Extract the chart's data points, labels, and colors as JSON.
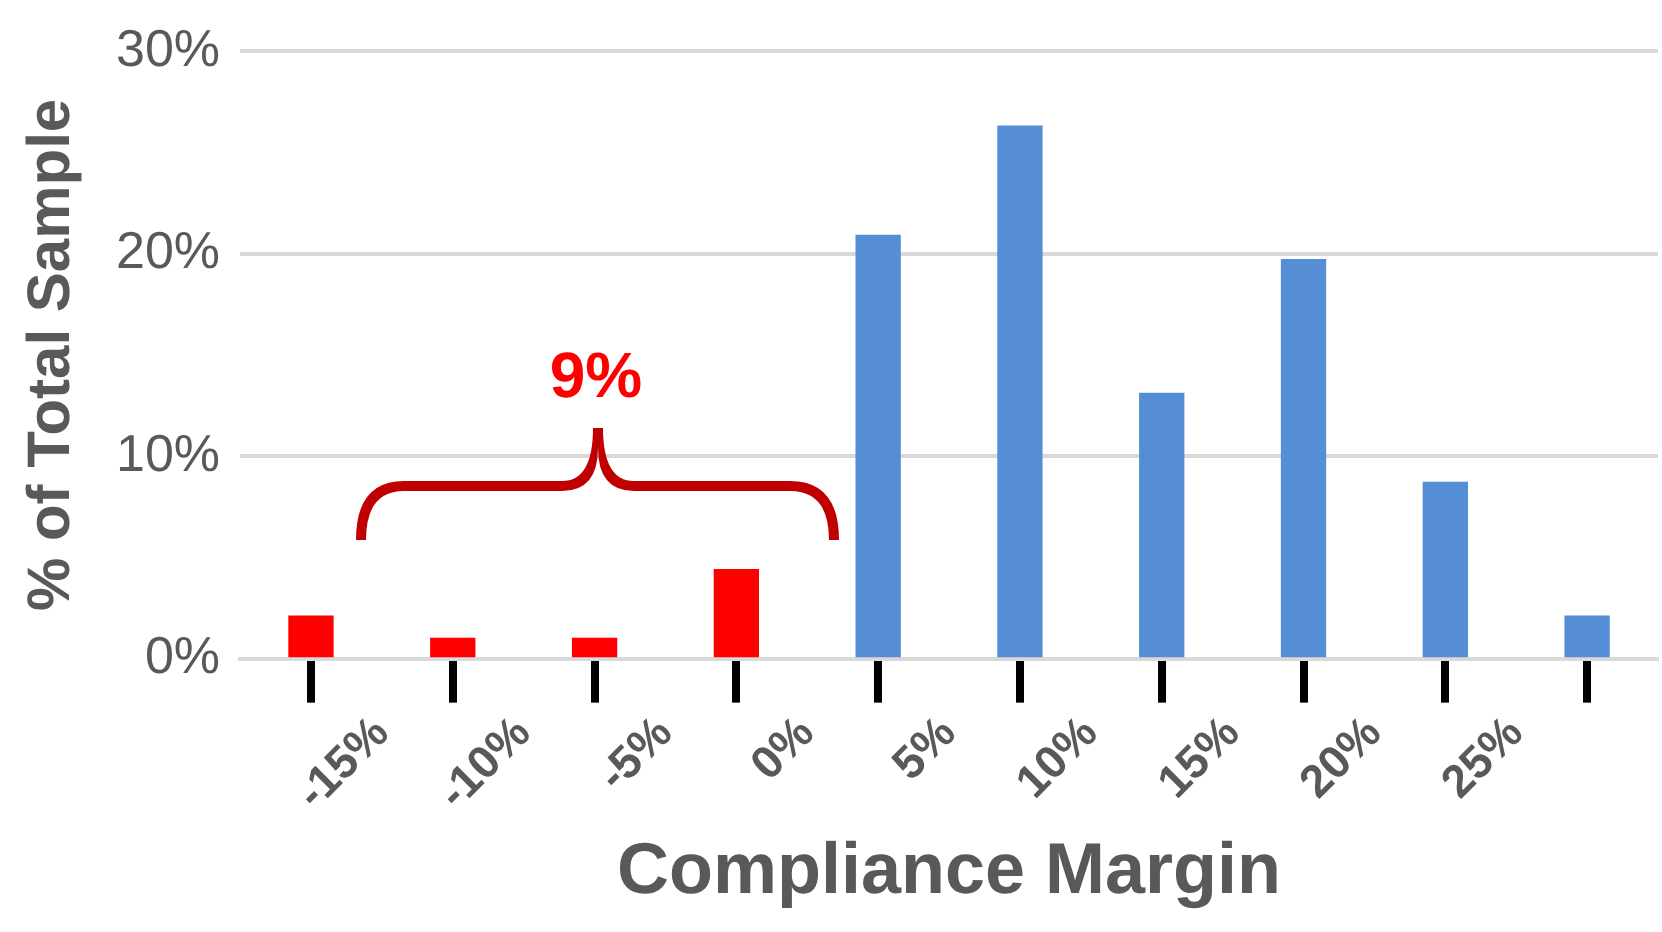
{
  "chart_data": {
    "type": "histogram",
    "xlabel": "Compliance Margin",
    "ylabel": "% of Total Sample",
    "bins": [
      -20,
      -15,
      -10,
      -5,
      0,
      5,
      10,
      15,
      20,
      25,
      30
    ],
    "values": [
      2.1,
      1.0,
      1.0,
      4.4,
      20.9,
      26.3,
      13.1,
      19.7,
      8.7,
      2.1
    ],
    "colors": [
      "#ff0000",
      "#ff0000",
      "#ff0000",
      "#ff0000",
      "#558ed5",
      "#558ed5",
      "#558ed5",
      "#558ed5",
      "#558ed5",
      "#558ed5"
    ],
    "xlim": [
      -20,
      30
    ],
    "xticks": [
      {
        "value": -15,
        "label": "-15%"
      },
      {
        "value": -10,
        "label": "-10%"
      },
      {
        "value": -5,
        "label": "-5%"
      },
      {
        "value": 0,
        "label": "0%"
      },
      {
        "value": 5,
        "label": "5%"
      },
      {
        "value": 10,
        "label": "10%"
      },
      {
        "value": 15,
        "label": "15%"
      },
      {
        "value": 20,
        "label": "20%"
      },
      {
        "value": 25,
        "label": "25%"
      }
    ],
    "ylim": [
      0,
      30
    ],
    "yticks": [
      {
        "value": 0,
        "label": "0%"
      },
      {
        "value": 10,
        "label": "10%"
      },
      {
        "value": 20,
        "label": "20%"
      },
      {
        "value": 30,
        "label": "30%"
      }
    ],
    "grid": "y",
    "legend": false,
    "annotations": [
      "9%"
    ]
  }
}
